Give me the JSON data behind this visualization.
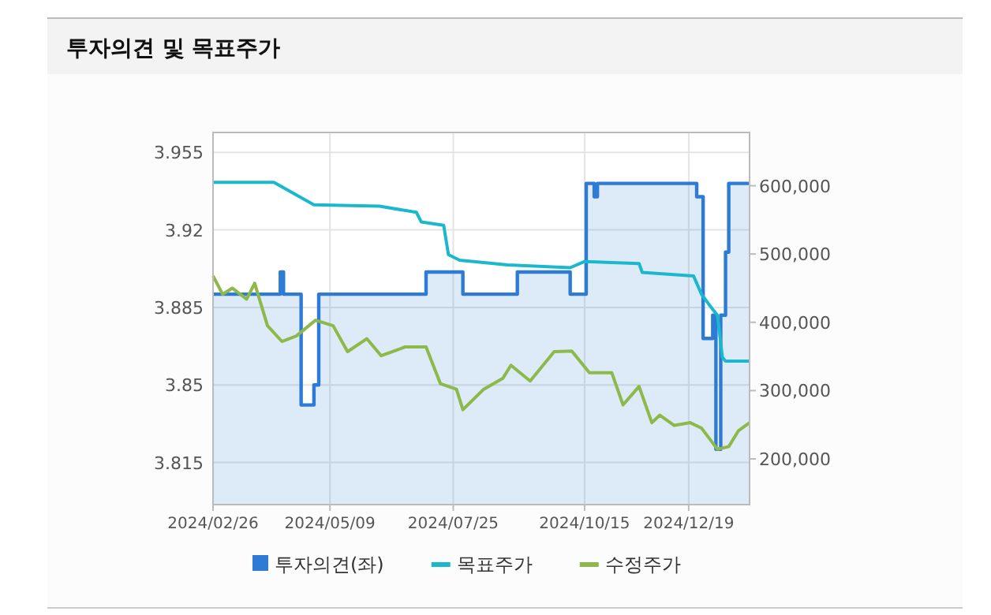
{
  "chart_data": {
    "type": "line",
    "title": "투자의견 및 목표주가",
    "legend": "bottom",
    "grid": true,
    "xlim": [
      "2024-02-26",
      "2025-01-26"
    ],
    "xticks": [
      {
        "value": "2024-02-26",
        "label": "2024/02/26"
      },
      {
        "value": "2024-05-09",
        "label": "2024/05/09"
      },
      {
        "value": "2024-07-25",
        "label": "2024/07/25"
      },
      {
        "value": "2024-10-15",
        "label": "2024/10/15"
      },
      {
        "value": "2024-12-19",
        "label": "2024/12/19"
      }
    ],
    "ylim": [
      3.796,
      3.964
    ],
    "yticks": [
      3.815,
      3.85,
      3.885,
      3.92,
      3.955
    ],
    "y2lim": [
      133000,
      678000
    ],
    "y2ticks": [
      {
        "value": 200000,
        "label": "200,000"
      },
      {
        "value": 300000,
        "label": "300,000"
      },
      {
        "value": 400000,
        "label": "400,000"
      },
      {
        "value": 500000,
        "label": "500,000"
      },
      {
        "value": 600000,
        "label": "600,000"
      }
    ],
    "series": [
      {
        "name": "투자의견(좌)",
        "type": "area",
        "color": "#2e7bd6",
        "x": [
          "2024-02-26",
          "2024-04-08",
          "2024-04-08",
          "2024-04-10",
          "2024-04-10",
          "2024-04-21",
          "2024-04-21",
          "2024-04-29",
          "2024-04-29",
          "2024-05-02",
          "2024-05-02",
          "2024-07-08",
          "2024-07-08",
          "2024-07-31",
          "2024-07-31",
          "2024-09-03",
          "2024-09-03",
          "2024-10-06",
          "2024-10-06",
          "2024-10-16",
          "2024-10-16",
          "2024-10-21",
          "2024-10-21",
          "2024-10-23",
          "2024-10-23",
          "2024-12-24",
          "2024-12-24",
          "2024-12-28",
          "2024-12-28",
          "2025-01-03",
          "2025-01-03",
          "2025-01-05",
          "2025-01-05",
          "2025-01-08",
          "2025-01-08",
          "2025-01-11",
          "2025-01-11",
          "2025-01-13",
          "2025-01-13",
          "2025-01-26"
        ],
        "values": [
          3.891,
          3.891,
          3.901,
          3.901,
          3.891,
          3.891,
          3.841,
          3.841,
          3.85,
          3.85,
          3.891,
          3.891,
          3.901,
          3.901,
          3.891,
          3.891,
          3.901,
          3.901,
          3.891,
          3.891,
          3.941,
          3.941,
          3.935,
          3.935,
          3.941,
          3.941,
          3.935,
          3.935,
          3.871,
          3.871,
          3.8815,
          3.8815,
          3.821,
          3.821,
          3.8815,
          3.8815,
          3.91,
          3.91,
          3.941,
          3.941
        ]
      },
      {
        "name": "목표주가",
        "axis": "y2",
        "color": "#1ab8cc",
        "x": [
          "2024-02-26",
          "2024-04-04",
          "2024-04-29",
          "2024-06-09",
          "2024-07-02",
          "2024-07-05",
          "2024-07-19",
          "2024-07-22",
          "2024-07-29",
          "2024-08-28",
          "2024-10-06",
          "2024-10-15",
          "2024-11-18",
          "2024-11-20",
          "2024-12-22",
          "2024-12-27",
          "2025-01-02",
          "2025-01-06",
          "2025-01-09",
          "2025-01-11",
          "2025-01-26"
        ],
        "values": [
          605000,
          605000,
          572000,
          570000,
          561000,
          547000,
          542000,
          499000,
          491000,
          484000,
          480000,
          489000,
          486000,
          473000,
          468000,
          441000,
          422000,
          410000,
          349000,
          343000,
          343000
        ]
      },
      {
        "name": "수정주가",
        "axis": "y2",
        "color": "#8db84a",
        "x": [
          "2024-02-26",
          "2024-03-03",
          "2024-03-09",
          "2024-03-18",
          "2024-03-23",
          "2024-03-31",
          "2024-04-09",
          "2024-04-18",
          "2024-04-30",
          "2024-05-11",
          "2024-05-20",
          "2024-06-01",
          "2024-06-10",
          "2024-06-25",
          "2024-07-08",
          "2024-07-17",
          "2024-07-27",
          "2024-07-31",
          "2024-08-13",
          "2024-08-25",
          "2024-08-30",
          "2024-09-11",
          "2024-09-26",
          "2024-10-07",
          "2024-10-18",
          "2024-11-01",
          "2024-11-08",
          "2024-11-18",
          "2024-11-26",
          "2024-12-01",
          "2024-12-10",
          "2024-12-20",
          "2024-12-27",
          "2025-01-06",
          "2025-01-13",
          "2025-01-19",
          "2025-01-26"
        ],
        "values": [
          468000,
          441000,
          450000,
          434000,
          457000,
          395000,
          372000,
          380000,
          403000,
          395000,
          357000,
          376000,
          351000,
          364000,
          364000,
          310000,
          302000,
          272000,
          302000,
          318000,
          337000,
          314000,
          357000,
          358000,
          326000,
          326000,
          279000,
          306000,
          253000,
          264000,
          249000,
          253000,
          245000,
          214000,
          218000,
          241000,
          253000
        ]
      }
    ]
  }
}
